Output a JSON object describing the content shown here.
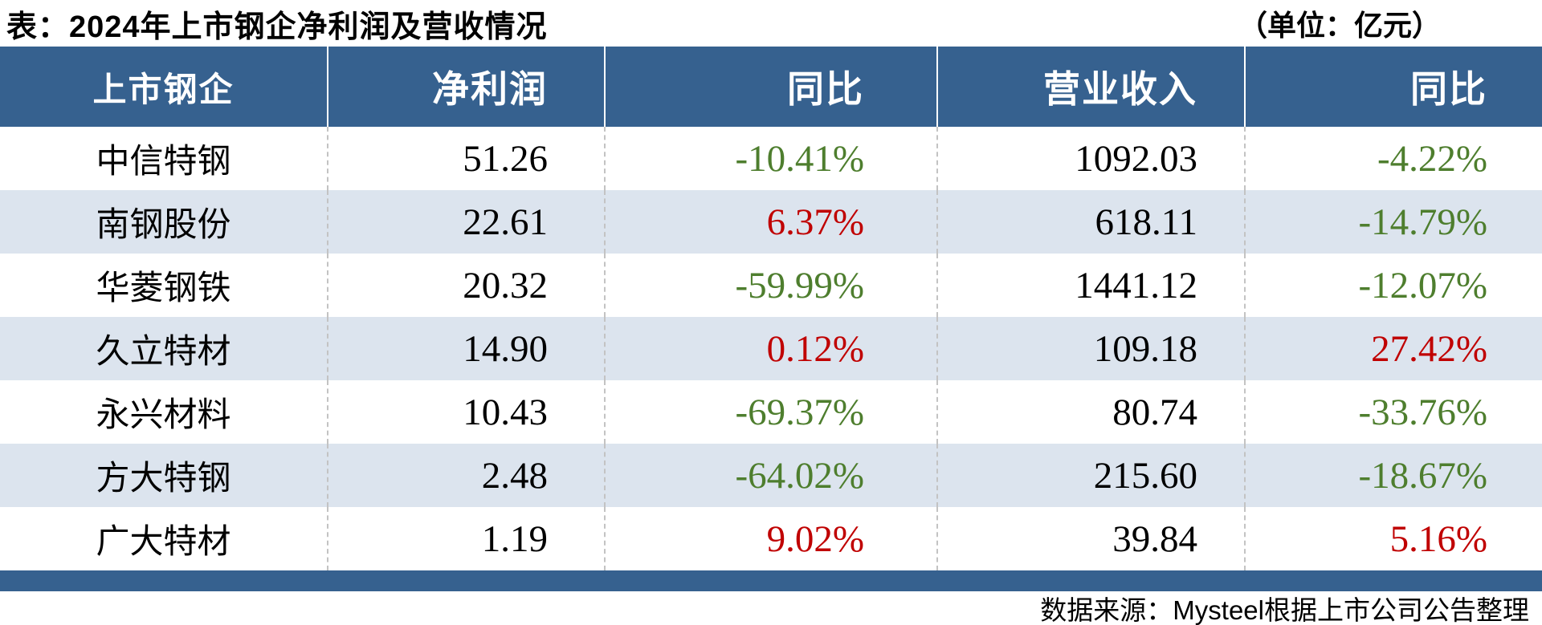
{
  "title": "表：2024年上市钢企净利润及营收情况",
  "unit_note": "（单位：亿元）",
  "colors": {
    "header_bg": "#36618F",
    "alt_row_bg": "#DCE4EE",
    "up_red": "#C00000",
    "down_green": "#4E7E2E",
    "divider": "#C3C3C3"
  },
  "columns": {
    "company": "上市钢企",
    "net_profit": "净利润",
    "net_profit_yoy": "同比",
    "revenue": "营业收入",
    "revenue_yoy": "同比"
  },
  "rows": [
    {
      "company": "中信特钢",
      "net_profit": "51.26",
      "net_profit_yoy": "-10.41%",
      "net_profit_yoy_color": "#4E7E2E",
      "revenue": "1092.03",
      "revenue_yoy": "-4.22%",
      "revenue_yoy_color": "#4E7E2E"
    },
    {
      "company": "南钢股份",
      "net_profit": "22.61",
      "net_profit_yoy": "6.37%",
      "net_profit_yoy_color": "#C00000",
      "revenue": "618.11",
      "revenue_yoy": "-14.79%",
      "revenue_yoy_color": "#4E7E2E"
    },
    {
      "company": "华菱钢铁",
      "net_profit": "20.32",
      "net_profit_yoy": "-59.99%",
      "net_profit_yoy_color": "#4E7E2E",
      "revenue": "1441.12",
      "revenue_yoy": "-12.07%",
      "revenue_yoy_color": "#4E7E2E"
    },
    {
      "company": "久立特材",
      "net_profit": "14.90",
      "net_profit_yoy": "0.12%",
      "net_profit_yoy_color": "#C00000",
      "revenue": "109.18",
      "revenue_yoy": "27.42%",
      "revenue_yoy_color": "#C00000"
    },
    {
      "company": "永兴材料",
      "net_profit": "10.43",
      "net_profit_yoy": "-69.37%",
      "net_profit_yoy_color": "#4E7E2E",
      "revenue": "80.74",
      "revenue_yoy": "-33.76%",
      "revenue_yoy_color": "#4E7E2E"
    },
    {
      "company": "方大特钢",
      "net_profit": "2.48",
      "net_profit_yoy": "-64.02%",
      "net_profit_yoy_color": "#4E7E2E",
      "revenue": "215.60",
      "revenue_yoy": "-18.67%",
      "revenue_yoy_color": "#4E7E2E"
    },
    {
      "company": "广大特材",
      "net_profit": "1.19",
      "net_profit_yoy": "9.02%",
      "net_profit_yoy_color": "#C00000",
      "revenue": "39.84",
      "revenue_yoy": "5.16%",
      "revenue_yoy_color": "#C00000"
    }
  ],
  "footer": {
    "source": "数据来源：Mysteel根据上市公司公告整理"
  },
  "chart_data": {
    "type": "table",
    "title": "表：2024年上市钢企净利润及营收情况",
    "unit": "亿元",
    "columns": [
      "上市钢企",
      "净利润",
      "同比",
      "营业收入",
      "同比"
    ],
    "rows": [
      [
        "中信特钢",
        51.26,
        "-10.41%",
        1092.03,
        "-4.22%"
      ],
      [
        "南钢股份",
        22.61,
        "6.37%",
        618.11,
        "-14.79%"
      ],
      [
        "华菱钢铁",
        20.32,
        "-59.99%",
        1441.12,
        "-12.07%"
      ],
      [
        "久立特材",
        14.9,
        "0.12%",
        109.18,
        "27.42%"
      ],
      [
        "永兴材料",
        10.43,
        "-69.37%",
        80.74,
        "-33.76%"
      ],
      [
        "方大特钢",
        2.48,
        "-64.02%",
        215.6,
        "-18.67%"
      ],
      [
        "广大特材",
        1.19,
        "9.02%",
        39.84,
        "5.16%"
      ]
    ],
    "color_coding": "positive YoY values in red (#C00000), negative YoY values in green (#4E7E2E)",
    "source": "数据来源：Mysteel根据上市公司公告整理"
  }
}
